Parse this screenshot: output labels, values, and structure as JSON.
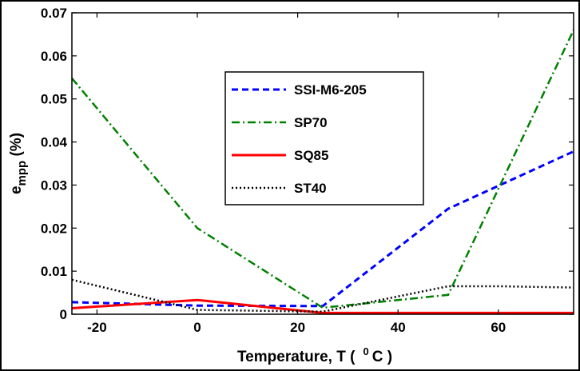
{
  "chart_data": {
    "type": "line",
    "title": "",
    "xlabel": {
      "main": "Temperature, T (",
      "sup": "0",
      "after": "C )"
    },
    "ylabel": {
      "main": "e",
      "sub": "mpp",
      "after": " (%)"
    },
    "xlim": [
      -25,
      75
    ],
    "ylim": [
      0,
      0.07
    ],
    "xticks": [
      -20,
      0,
      20,
      40,
      60
    ],
    "xtick_labels": [
      "-20",
      "0",
      "20",
      "40",
      "60"
    ],
    "yticks": [
      0,
      0.01,
      0.02,
      0.03,
      0.04,
      0.05,
      0.06,
      0.07
    ],
    "ytick_labels": [
      "0",
      "0.01",
      "0.02",
      "0.03",
      "0.04",
      "0.05",
      "0.06",
      "0.07"
    ],
    "grid": false,
    "legend_position": "center",
    "series": [
      {
        "name": "SSI-M6-205",
        "color": "#0000ff",
        "dash": "dashed",
        "x": [
          -25,
          0,
          25,
          50,
          75
        ],
        "y": [
          0.0028,
          0.002,
          0.0019,
          0.0245,
          0.0378
        ]
      },
      {
        "name": "SP70",
        "color": "#008000",
        "dash": "dashdot",
        "x": [
          -25,
          0,
          25,
          50,
          75
        ],
        "y": [
          0.0548,
          0.02,
          0.0015,
          0.0045,
          0.066
        ]
      },
      {
        "name": "SQ85",
        "color": "#ff0000",
        "dash": "solid",
        "x": [
          -25,
          0,
          25,
          50,
          75
        ],
        "y": [
          0.0014,
          0.0033,
          0.0003,
          0.0003,
          0.0003
        ]
      },
      {
        "name": "ST40",
        "color": "#000000",
        "dash": "dotted",
        "x": [
          -25,
          0,
          25,
          50,
          60,
          75
        ],
        "y": [
          0.008,
          0.001,
          0.0006,
          0.0065,
          0.0065,
          0.0062
        ]
      }
    ]
  }
}
